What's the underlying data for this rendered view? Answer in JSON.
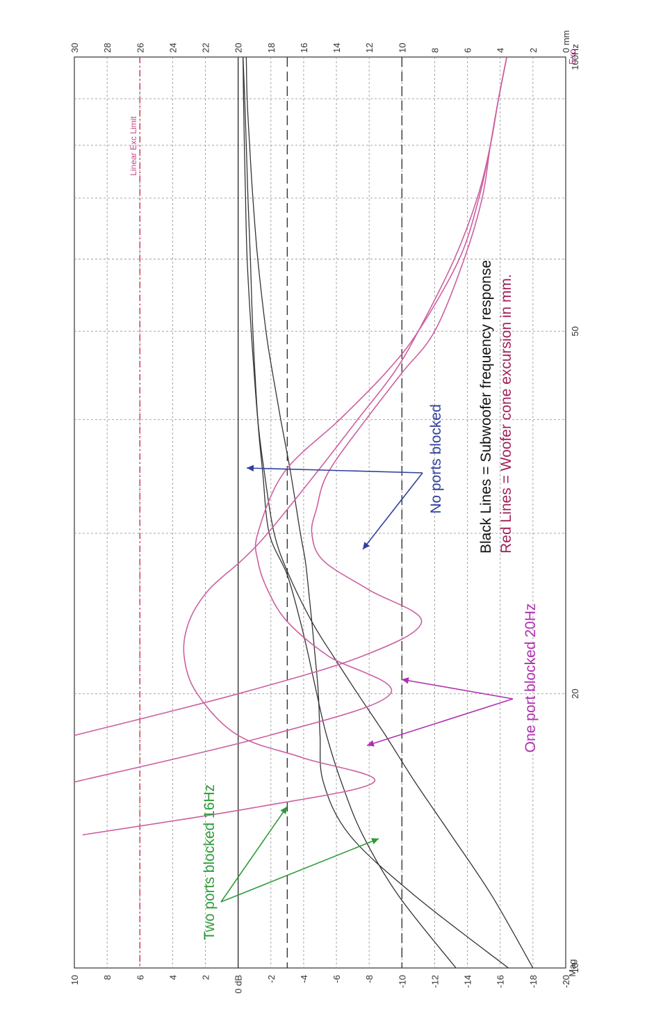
{
  "chart_data": {
    "type": "line",
    "orientation": "rotated-90-ccw",
    "xscale": "log",
    "xlim": [
      10,
      100
    ],
    "x_unit_label": "100Hz",
    "x_ticks": [
      {
        "value": 10,
        "label": "10"
      },
      {
        "value": 20,
        "label": "20"
      },
      {
        "value": 50,
        "label": "50"
      },
      {
        "value": 100,
        "label": "100Hz"
      }
    ],
    "left_axis": {
      "name": "Mag",
      "ylim": [
        -20,
        10
      ],
      "ticks": [
        "10",
        "8",
        "6",
        "4",
        "2",
        "0 dB",
        "-2",
        "-4",
        "-6",
        "-8",
        "-10",
        "-12",
        "-14",
        "-16",
        "-18",
        "-20"
      ],
      "tick_values": [
        10,
        8,
        6,
        4,
        2,
        0,
        -2,
        -4,
        -6,
        -8,
        -10,
        -12,
        -14,
        -16,
        -18,
        -20
      ]
    },
    "right_axis": {
      "name": "Exc",
      "unit": "mm",
      "ylim": [
        0,
        30
      ],
      "ticks": [
        "30",
        "28",
        "26",
        "24",
        "22",
        "20",
        "18",
        "16",
        "14",
        "12",
        "10",
        "8",
        "6",
        "4",
        "2",
        "0 mm"
      ],
      "tick_values": [
        30,
        28,
        26,
        24,
        22,
        20,
        18,
        16,
        14,
        12,
        10,
        8,
        6,
        4,
        2,
        0
      ]
    },
    "grid": true,
    "reference_lines": {
      "solid_db": [
        0
      ],
      "dashed_db": [
        -3,
        -10
      ],
      "linear_exc_limit_mm": 26
    },
    "magnitude_color": "#333333",
    "excursion_color": "#cc5fa0",
    "magnitude_series": [
      {
        "x": [
          10,
          12,
          14,
          16,
          18,
          20,
          22,
          24,
          27,
          30,
          35,
          40,
          50,
          60,
          70,
          80,
          90,
          100
        ],
        "y": [
          -18,
          -15.5,
          -13,
          -10.8,
          -9,
          -7.3,
          -5.8,
          -4.5,
          -3.1,
          -2.2,
          -1.6,
          -1.2,
          -0.8,
          -0.55,
          -0.45,
          -0.38,
          -0.33,
          -0.3
        ]
      },
      {
        "x": [
          10,
          12,
          14,
          16,
          18,
          20,
          22,
          24,
          27,
          30,
          35,
          40,
          50,
          60,
          70,
          80,
          90,
          100
        ],
        "y": [
          -13.3,
          -9.8,
          -7.6,
          -6.3,
          -5.4,
          -4.8,
          -4.3,
          -3.8,
          -3,
          -1.9,
          -1.5,
          -1.2,
          -0.9,
          -0.75,
          -0.6,
          -0.5,
          -0.4,
          -0.3
        ]
      },
      {
        "x": [
          10,
          12,
          14,
          16,
          18,
          20,
          22,
          24,
          26,
          28,
          30,
          35,
          40,
          45,
          50,
          60,
          70,
          80,
          90,
          100
        ],
        "y": [
          -16.5,
          -10.8,
          -6.8,
          -5.2,
          -5,
          -4.9,
          -4.7,
          -4.5,
          -4.3,
          -4.1,
          -3.8,
          -3.2,
          -2.6,
          -2.1,
          -1.7,
          -1.2,
          -0.9,
          -0.7,
          -0.55,
          -0.5
        ]
      }
    ],
    "excursion_series": [
      {
        "x": [
          18,
          20,
          22,
          24,
          26,
          28,
          30,
          32,
          35,
          40,
          45,
          50,
          60,
          70,
          80,
          90,
          100
        ],
        "y": [
          30,
          20,
          12.4,
          8.8,
          12,
          14.8,
          15.5,
          15.2,
          14.5,
          12.2,
          10,
          8,
          6.2,
          5.1,
          4.6,
          4.1,
          3.6
        ]
      },
      {
        "x": [
          16,
          18,
          20,
          22,
          24,
          26,
          28,
          30,
          35,
          40,
          45,
          50,
          60,
          70,
          80,
          90,
          100
        ],
        "y": [
          30,
          18.1,
          10.7,
          14.5,
          17,
          18.2,
          18.8,
          18.8,
          17.2,
          13.8,
          11,
          9,
          6.5,
          5.3,
          4.6,
          4.1,
          3.6
        ]
      },
      {
        "x": [
          14,
          15,
          16,
          17,
          18,
          20,
          22,
          24,
          26,
          28,
          30,
          35,
          40,
          45,
          50,
          60,
          70,
          80,
          90,
          100
        ],
        "y": [
          29.5,
          19,
          11.7,
          16,
          20,
          22.5,
          23.3,
          23,
          21.8,
          19.8,
          18.2,
          15.2,
          12.7,
          10.5,
          9,
          6.8,
          5.4,
          4.6,
          4.1,
          3.6
        ]
      }
    ],
    "annotations": {
      "linear_exc_limit": "Linear Exc Limit",
      "no_ports": "No ports blocked",
      "one_port": "One port blocked 20Hz",
      "two_ports": "Two ports blocked 16Hz",
      "legend_black": "Black Lines = Subwoofer frequency response",
      "legend_red": "Red Lines = Woofer cone excursion in mm."
    },
    "annotation_colors": {
      "no_ports": "#2f3f9e",
      "one_port": "#b02fb0",
      "two_ports": "#2f9a3a",
      "legend_black": "#111111",
      "legend_red": "#a0205a",
      "limit_line": "#d0304a"
    }
  }
}
